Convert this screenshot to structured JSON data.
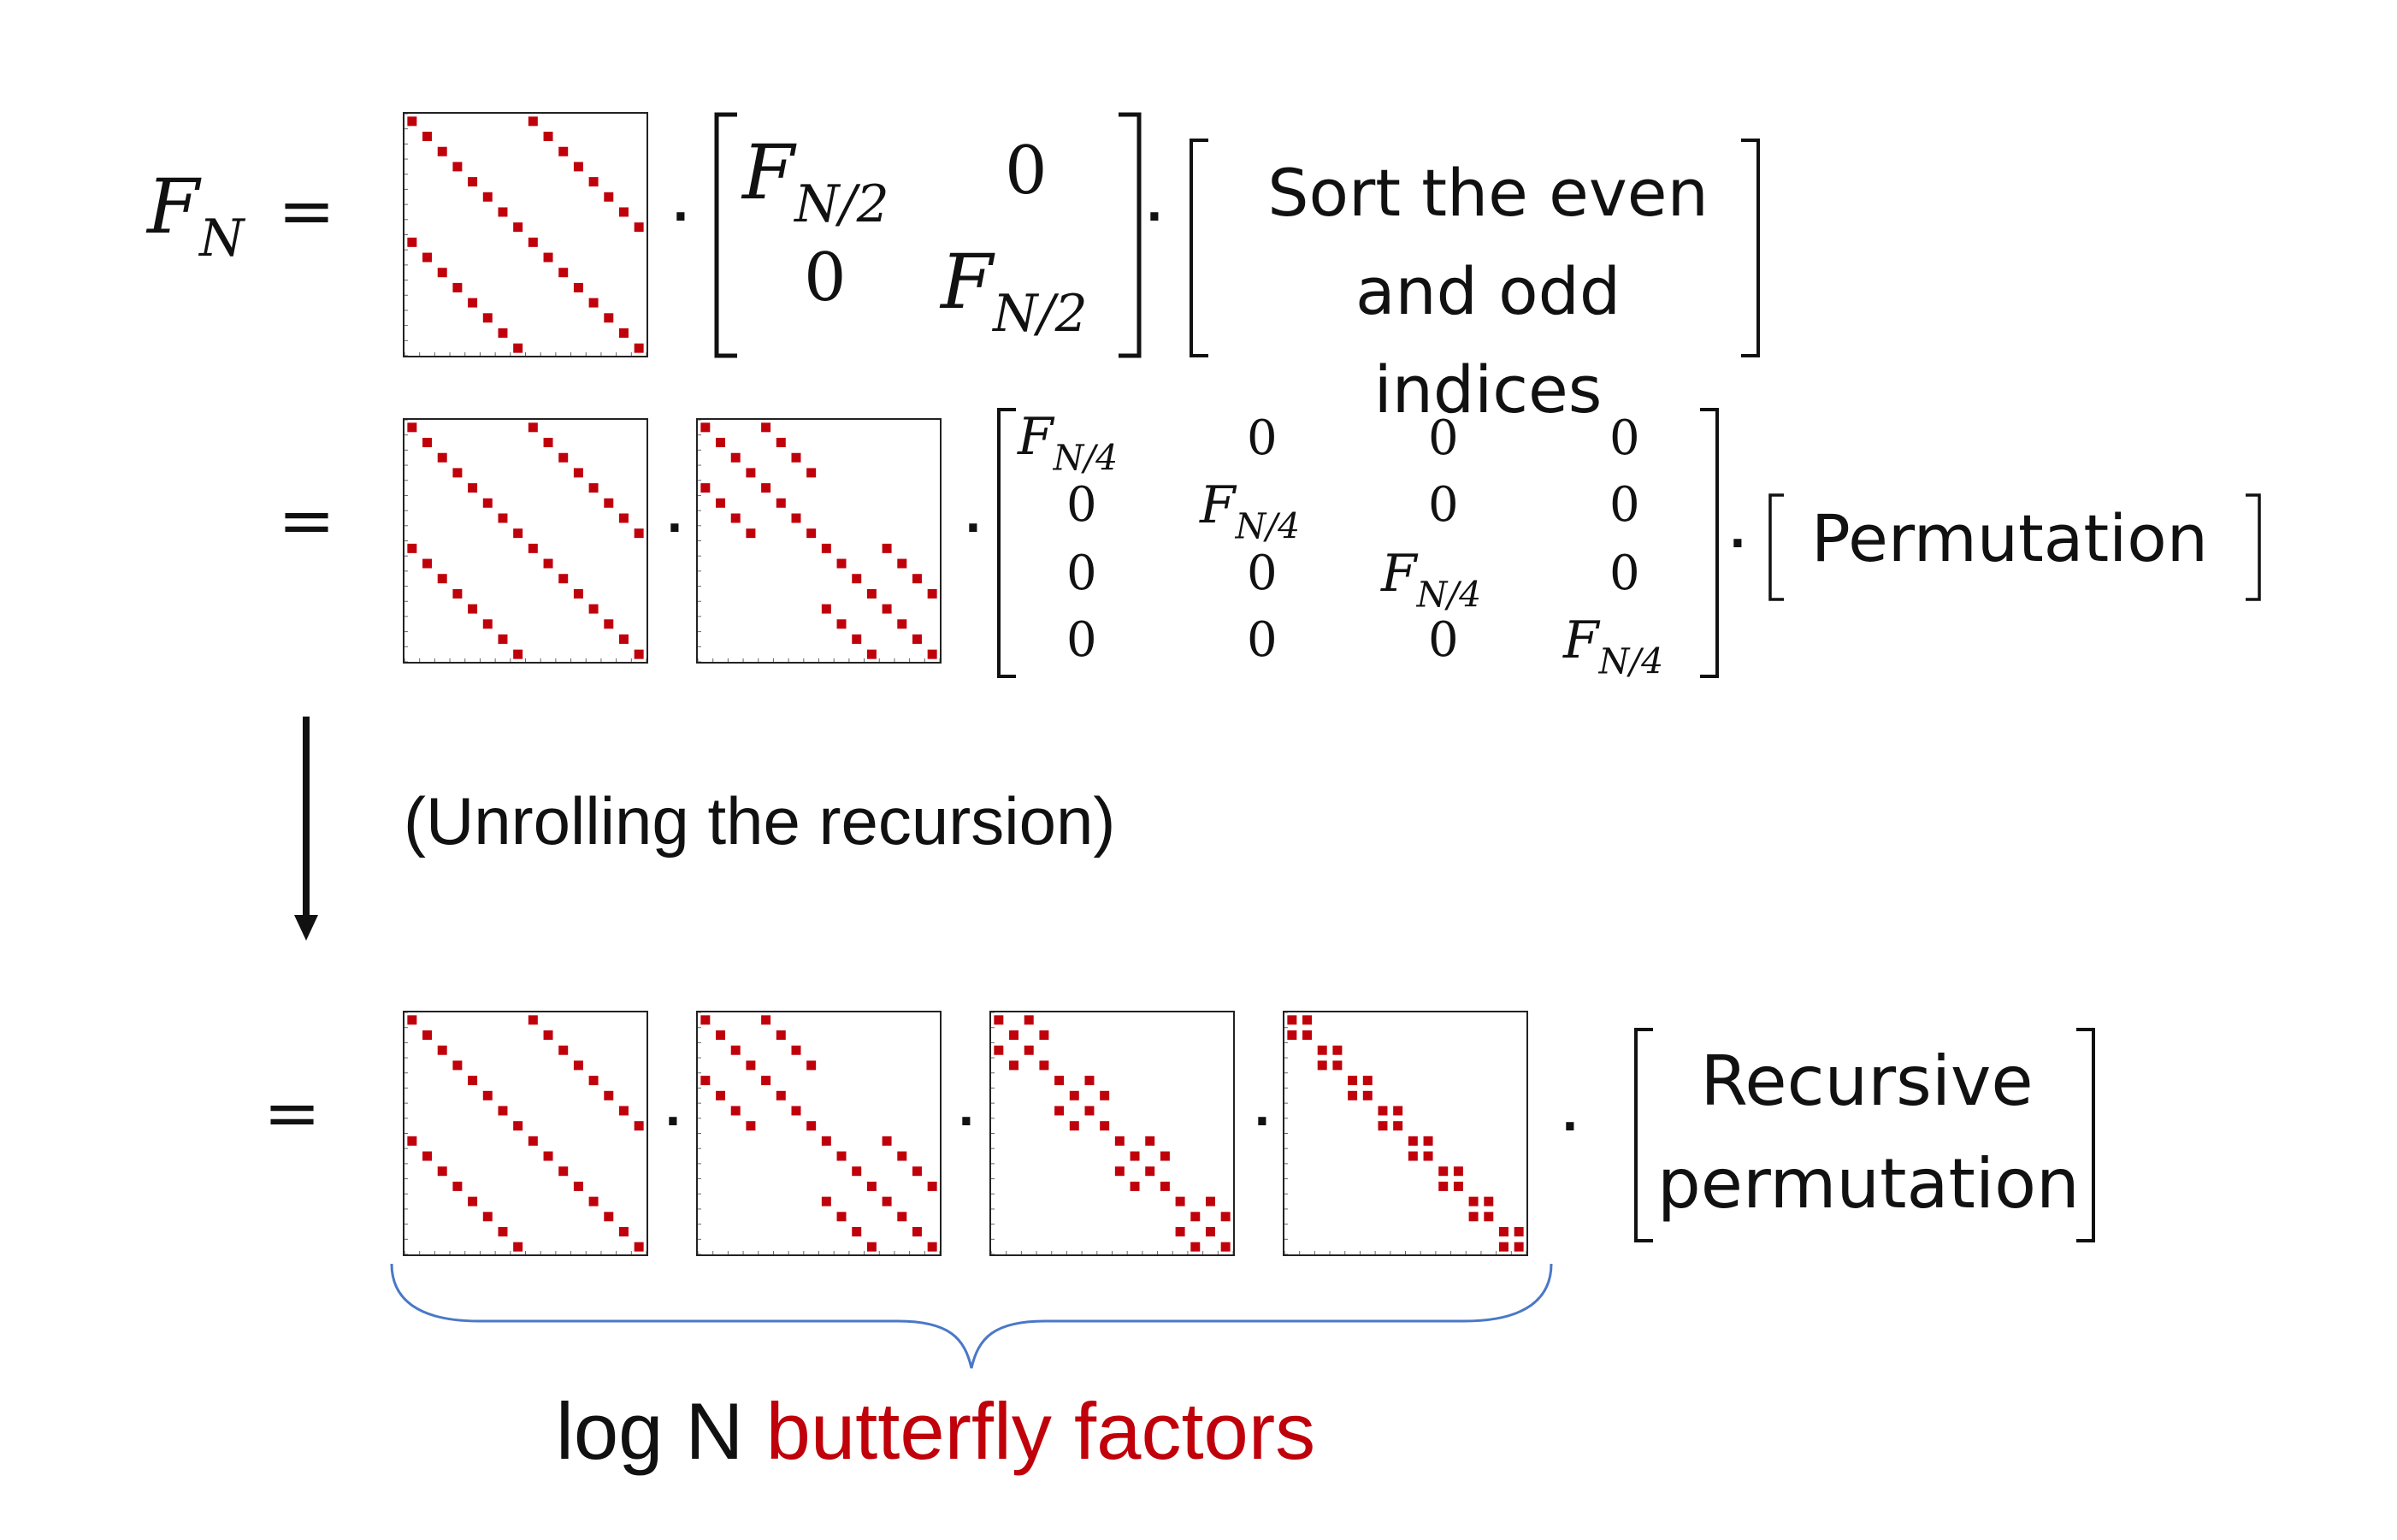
{
  "lhs": {
    "F": "F",
    "N": "N",
    "eq": "="
  },
  "row1": {
    "block": {
      "F": "F",
      "sub": "N/2",
      "zero": "0"
    },
    "sort_text_1": "Sort the even",
    "sort_text_2": "and odd indices"
  },
  "row2": {
    "eq": "=",
    "block": {
      "F": "F",
      "sub": "N/4",
      "zero": "0"
    },
    "perm_text": "Permutation"
  },
  "arrow_text": "(Unrolling the recursion)",
  "row3": {
    "eq": "=",
    "rec_text_1": "Recursive",
    "rec_text_2": "permutation"
  },
  "brace_caption": {
    "prefix": "log N ",
    "highlight": "butterfly factors"
  },
  "colors": {
    "cell": "#c0000a",
    "brace": "#4a78c8",
    "highlight": "#c0000a",
    "text": "#111111"
  },
  "multiplication_symbol": "·"
}
